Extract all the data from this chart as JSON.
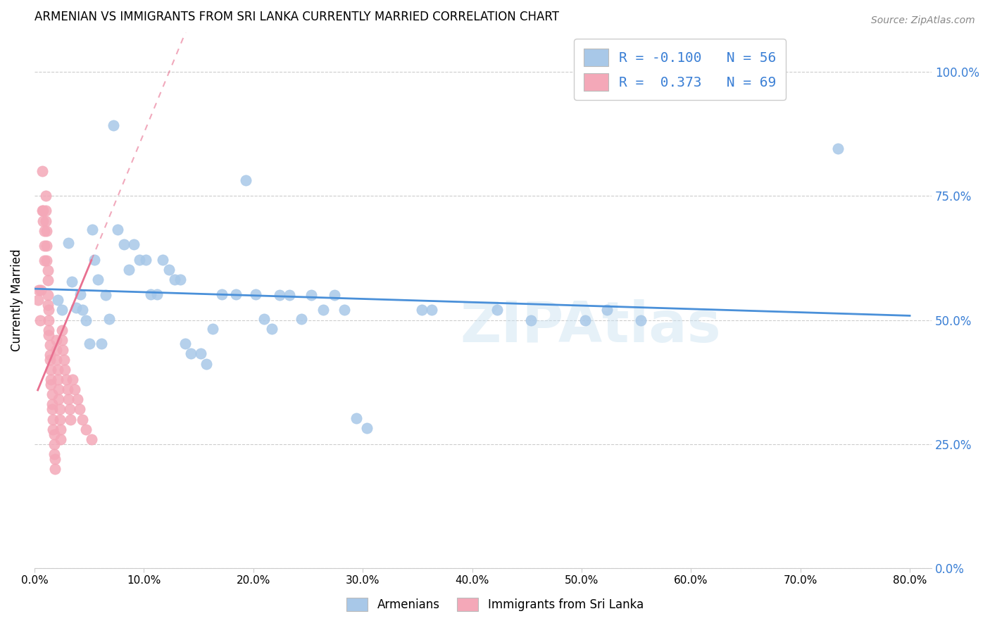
{
  "title": "ARMENIAN VS IMMIGRANTS FROM SRI LANKA CURRENTLY MARRIED CORRELATION CHART",
  "source": "Source: ZipAtlas.com",
  "ylabel": "Currently Married",
  "xlim": [
    0.0,
    0.82
  ],
  "ylim": [
    0.0,
    1.08
  ],
  "watermark": "ZIPAtlas",
  "armenians_x": [
    0.021,
    0.025,
    0.031,
    0.034,
    0.038,
    0.042,
    0.044,
    0.047,
    0.05,
    0.053,
    0.055,
    0.058,
    0.061,
    0.065,
    0.068,
    0.072,
    0.076,
    0.082,
    0.086,
    0.091,
    0.096,
    0.102,
    0.106,
    0.112,
    0.117,
    0.123,
    0.128,
    0.133,
    0.138,
    0.143,
    0.152,
    0.157,
    0.163,
    0.171,
    0.184,
    0.193,
    0.202,
    0.21,
    0.217,
    0.224,
    0.233,
    0.244,
    0.253,
    0.264,
    0.274,
    0.283,
    0.294,
    0.304,
    0.354,
    0.363,
    0.423,
    0.454,
    0.503,
    0.523,
    0.554,
    0.734
  ],
  "armenians_y": [
    0.54,
    0.52,
    0.655,
    0.578,
    0.525,
    0.552,
    0.52,
    0.5,
    0.452,
    0.682,
    0.622,
    0.582,
    0.452,
    0.55,
    0.502,
    0.892,
    0.682,
    0.652,
    0.602,
    0.652,
    0.622,
    0.622,
    0.552,
    0.552,
    0.622,
    0.602,
    0.582,
    0.582,
    0.452,
    0.432,
    0.432,
    0.412,
    0.482,
    0.552,
    0.552,
    0.782,
    0.552,
    0.502,
    0.482,
    0.55,
    0.55,
    0.502,
    0.55,
    0.52,
    0.55,
    0.52,
    0.302,
    0.282,
    0.52,
    0.52,
    0.52,
    0.5,
    0.5,
    0.52,
    0.5,
    0.845
  ],
  "srilanka_x": [
    0.003,
    0.004,
    0.005,
    0.006,
    0.007,
    0.007,
    0.008,
    0.008,
    0.009,
    0.009,
    0.009,
    0.01,
    0.01,
    0.01,
    0.011,
    0.011,
    0.011,
    0.012,
    0.012,
    0.012,
    0.012,
    0.013,
    0.013,
    0.013,
    0.013,
    0.014,
    0.014,
    0.014,
    0.015,
    0.015,
    0.015,
    0.016,
    0.016,
    0.016,
    0.017,
    0.017,
    0.018,
    0.018,
    0.018,
    0.019,
    0.019,
    0.02,
    0.02,
    0.02,
    0.021,
    0.021,
    0.022,
    0.022,
    0.023,
    0.023,
    0.024,
    0.024,
    0.025,
    0.025,
    0.026,
    0.027,
    0.028,
    0.029,
    0.03,
    0.031,
    0.032,
    0.033,
    0.035,
    0.037,
    0.039,
    0.041,
    0.044,
    0.047,
    0.052
  ],
  "srilanka_y": [
    0.54,
    0.56,
    0.5,
    0.56,
    0.8,
    0.72,
    0.72,
    0.7,
    0.68,
    0.65,
    0.62,
    0.75,
    0.72,
    0.7,
    0.68,
    0.65,
    0.62,
    0.6,
    0.58,
    0.55,
    0.53,
    0.52,
    0.5,
    0.48,
    0.47,
    0.45,
    0.43,
    0.42,
    0.4,
    0.38,
    0.37,
    0.35,
    0.33,
    0.32,
    0.3,
    0.28,
    0.27,
    0.25,
    0.23,
    0.22,
    0.2,
    0.46,
    0.44,
    0.42,
    0.4,
    0.38,
    0.36,
    0.34,
    0.32,
    0.3,
    0.28,
    0.26,
    0.48,
    0.46,
    0.44,
    0.42,
    0.4,
    0.38,
    0.36,
    0.34,
    0.32,
    0.3,
    0.38,
    0.36,
    0.34,
    0.32,
    0.3,
    0.28,
    0.26
  ],
  "armenians_color": "#a8c8e8",
  "srilanka_color": "#f4a8b8",
  "trend_armenians_color": "#4a90d9",
  "trend_srilanka_color": "#e87090",
  "R_armenians": -0.1,
  "N_armenians": 56,
  "R_srilanka": 0.373,
  "N_srilanka": 69,
  "ytick_vals": [
    0.0,
    0.25,
    0.5,
    0.75,
    1.0
  ],
  "ytick_labels": [
    "0.0%",
    "25.0%",
    "50.0%",
    "75.0%",
    "100.0%"
  ],
  "xtick_vals": [
    0.0,
    0.1,
    0.2,
    0.3,
    0.4,
    0.5,
    0.6,
    0.7,
    0.8
  ],
  "xtick_labels": [
    "0.0%",
    "10.0%",
    "20.0%",
    "30.0%",
    "40.0%",
    "50.0%",
    "60.0%",
    "70.0%",
    "80.0%"
  ]
}
